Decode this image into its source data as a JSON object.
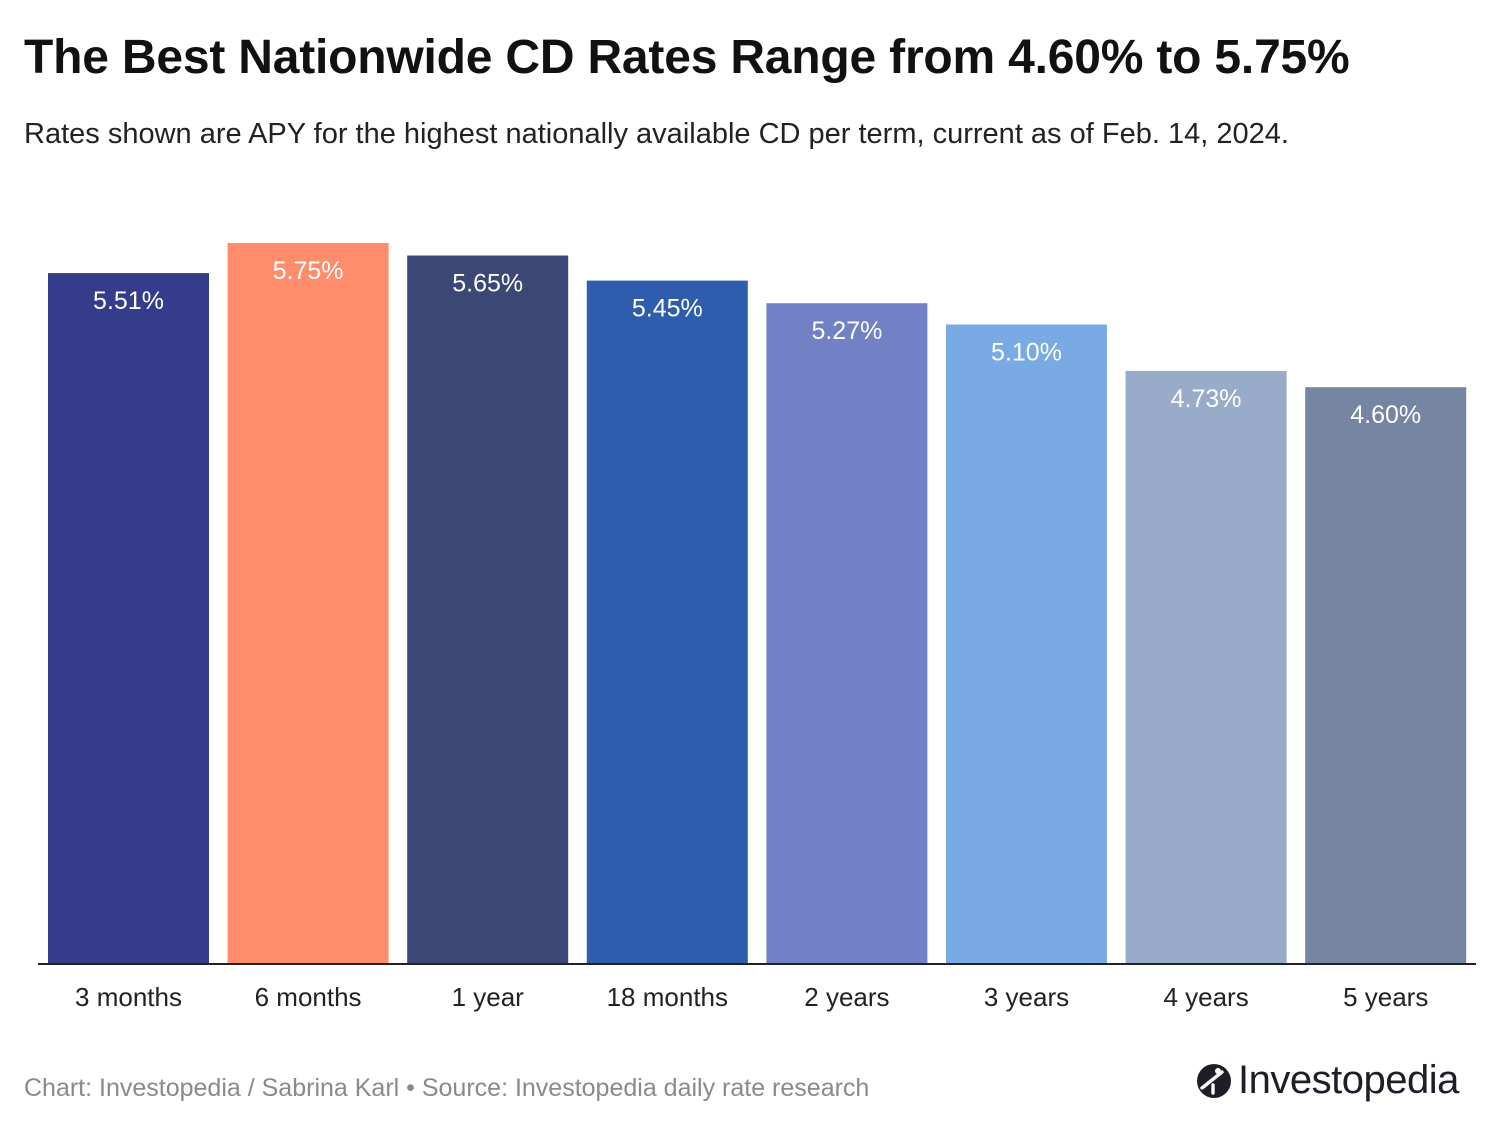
{
  "header": {
    "title": "The Best Nationwide CD Rates Range from 4.60% to 5.75%",
    "subtitle": "Rates shown are APY for the highest nationally available CD per term, current as of Feb. 14, 2024."
  },
  "chart_data": {
    "type": "bar",
    "title": "The Best Nationwide CD Rates Range from 4.60% to 5.75%",
    "subtitle": "Rates shown are APY for the highest nationally available CD per term, current as of Feb. 14, 2024.",
    "xlabel": "",
    "ylabel": "",
    "ylim": [
      0,
      5.75
    ],
    "grid": false,
    "categories": [
      "3 months",
      "6 months",
      "1 year",
      "18 months",
      "2 years",
      "3 years",
      "4 years",
      "5 years"
    ],
    "values": [
      5.51,
      5.75,
      5.65,
      5.45,
      5.27,
      5.1,
      4.73,
      4.6
    ],
    "data_labels": [
      "5.51%",
      "5.75%",
      "5.65%",
      "5.45%",
      "5.27%",
      "5.10%",
      "4.73%",
      "4.60%"
    ],
    "colors": [
      "#353c8b",
      "#ff8c6b",
      "#3b4876",
      "#2e5dad",
      "#7280c5",
      "#79aae4",
      "#98abc8",
      "#7585a2"
    ]
  },
  "footer": {
    "credit": "Chart: Investopedia / Sabrina Karl • Source: Investopedia daily rate research"
  },
  "brand": {
    "name": "Investopedia",
    "icon": "investopedia-logo-icon"
  }
}
